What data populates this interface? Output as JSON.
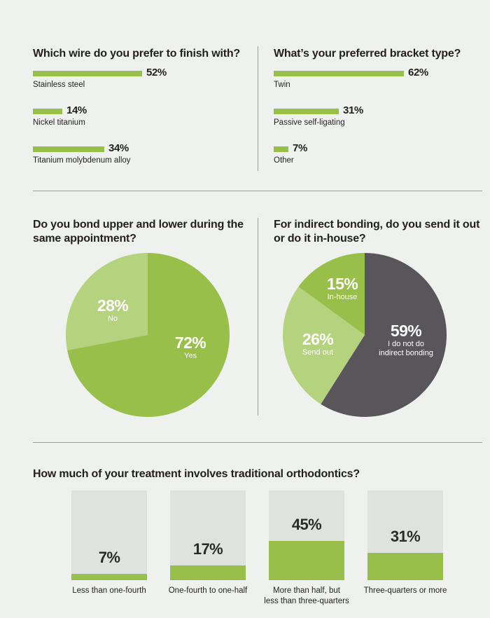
{
  "colors": {
    "accent": "#98bf4a",
    "accent_light": "#b5d27e",
    "dark": "#58565a",
    "box": "#dfe2df",
    "background": "#eef1ee"
  },
  "q1": {
    "title": "Which wire do you prefer to finish with?"
  },
  "q2": {
    "title": "What’s your preferred bracket type?"
  },
  "q3": {
    "title_line1": "Do you bond upper and lower during the",
    "title_line2": "same appointment?"
  },
  "q4": {
    "title_line1": "For indirect bonding, do you send it out",
    "title_line2": "or do it in-house?"
  },
  "q5": {
    "title": "How much of your treatment involves traditional orthodontics?"
  },
  "chart_data": [
    {
      "type": "bar",
      "orientation": "horizontal",
      "title": "Which wire do you prefer to finish with?",
      "categories": [
        "Stainless steel",
        "Nickel titanium",
        "Titanium molybdenum alloy"
      ],
      "values": [
        52,
        14,
        34
      ],
      "value_labels": [
        "52%",
        "14%",
        "34%"
      ],
      "unit": "%"
    },
    {
      "type": "bar",
      "orientation": "horizontal",
      "title": "What’s your preferred bracket type?",
      "categories": [
        "Twin",
        "Passive self-ligating",
        "Other"
      ],
      "values": [
        62,
        31,
        7
      ],
      "value_labels": [
        "62%",
        "31%",
        "7%"
      ],
      "unit": "%"
    },
    {
      "type": "pie",
      "title": "Do you bond upper and lower during the same appointment?",
      "slices": [
        {
          "label": "Yes",
          "value": 72,
          "value_label": "72%",
          "color": "#98bf4a"
        },
        {
          "label": "No",
          "value": 28,
          "value_label": "28%",
          "color": "#b5d27e"
        }
      ]
    },
    {
      "type": "pie",
      "title": "For indirect bonding, do you send it out or do it in-house?",
      "slices": [
        {
          "label": "I do not do indirect bonding",
          "label_lines": [
            "I do not do",
            "indirect bonding"
          ],
          "value": 59,
          "value_label": "59%",
          "color": "#58565a"
        },
        {
          "label": "Send out",
          "label_lines": [
            "Send out"
          ],
          "value": 26,
          "value_label": "26%",
          "color": "#b5d27e"
        },
        {
          "label": "In-house",
          "label_lines": [
            "In-house"
          ],
          "value": 15,
          "value_label": "15%",
          "color": "#98bf4a"
        }
      ]
    },
    {
      "type": "bar",
      "orientation": "vertical",
      "title": "How much of your treatment involves traditional orthodontics?",
      "categories": [
        "Less than one-fourth",
        "One-fourth to one-half",
        "More than half, but less than three-quarters",
        "Three-quarters or more"
      ],
      "category_lines": [
        [
          "Less than one-fourth"
        ],
        [
          "One-fourth to one-half"
        ],
        [
          "More than half, but",
          "less than three-quarters"
        ],
        [
          "Three-quarters or more"
        ]
      ],
      "values": [
        7,
        17,
        45,
        31
      ],
      "value_labels": [
        "7%",
        "17%",
        "45%",
        "31%"
      ],
      "ylim": [
        0,
        100
      ],
      "unit": "%"
    }
  ]
}
